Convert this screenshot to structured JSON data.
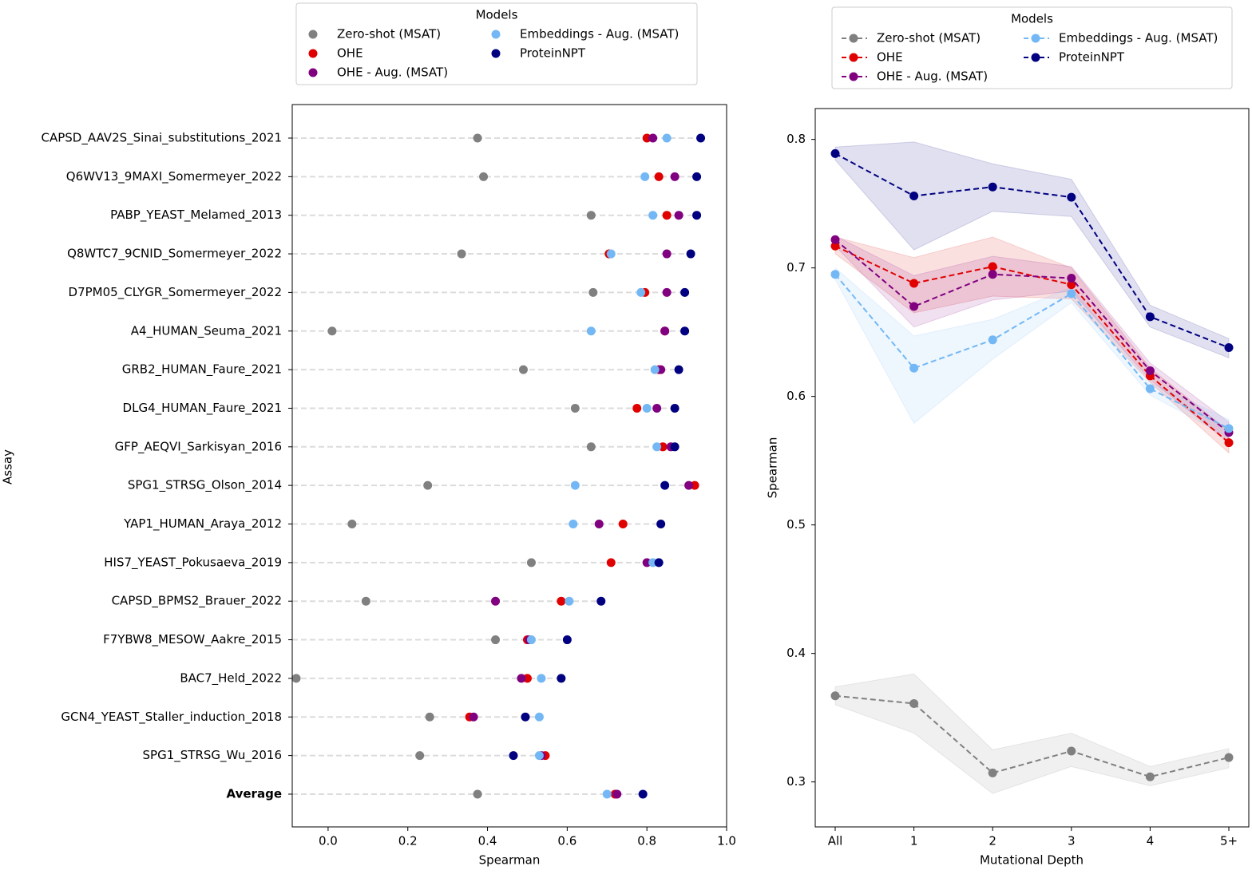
{
  "chart_data": [
    {
      "type": "dot",
      "xlabel": "Spearman",
      "ylabel": "Assay",
      "legend_title": "Models",
      "legend": "top",
      "categories": [
        "CAPSD_AAV2S_Sinai_substitutions_2021",
        "Q6WV13_9MAXI_Somermeyer_2022",
        "PABP_YEAST_Melamed_2013",
        "Q8WTC7_9CNID_Somermeyer_2022",
        "D7PM05_CLYGR_Somermeyer_2022",
        "A4_HUMAN_Seuma_2021",
        "GRB2_HUMAN_Faure_2021",
        "DLG4_HUMAN_Faure_2021",
        "GFP_AEQVI_Sarkisyan_2016",
        "SPG1_STRSG_Olson_2014",
        "YAP1_HUMAN_Araya_2012",
        "HIS7_YEAST_Pokusaeva_2019",
        "CAPSD_BPMS2_Brauer_2022",
        "F7YBW8_MESOW_Aakre_2015",
        "BAC7_Held_2022",
        "GCN4_YEAST_Staller_induction_2018",
        "SPG1_STRSG_Wu_2016",
        "Average"
      ],
      "series": [
        {
          "name": "Zero-shot (MSAT)",
          "color": "#808080",
          "values": [
            0.375,
            0.39,
            0.66,
            0.335,
            0.665,
            0.01,
            0.49,
            0.62,
            0.66,
            0.25,
            0.06,
            0.51,
            0.095,
            0.42,
            -0.08,
            0.255,
            0.23,
            0.375
          ]
        },
        {
          "name": "OHE",
          "color": "#e00000",
          "values": [
            0.8,
            0.83,
            0.85,
            0.705,
            0.795,
            0.845,
            0.83,
            0.775,
            0.84,
            0.92,
            0.74,
            0.71,
            0.585,
            0.5,
            0.5,
            0.355,
            0.545,
            0.72
          ]
        },
        {
          "name": "OHE - Aug. (MSAT)",
          "color": "#800080",
          "values": [
            0.815,
            0.87,
            0.88,
            0.85,
            0.85,
            0.845,
            0.835,
            0.825,
            0.86,
            0.905,
            0.68,
            0.8,
            0.42,
            0.505,
            0.485,
            0.365,
            0.535,
            0.725
          ]
        },
        {
          "name": "Embeddings - Aug. (MSAT)",
          "color": "#73b8f5",
          "values": [
            0.85,
            0.795,
            0.815,
            0.71,
            0.785,
            0.66,
            0.82,
            0.8,
            0.825,
            0.62,
            0.615,
            0.815,
            0.605,
            0.51,
            0.535,
            0.53,
            0.53,
            0.7
          ]
        },
        {
          "name": "ProteinNPT",
          "color": "#000080",
          "values": [
            0.935,
            0.925,
            0.925,
            0.91,
            0.895,
            0.895,
            0.88,
            0.87,
            0.87,
            0.845,
            0.835,
            0.83,
            0.685,
            0.6,
            0.585,
            0.495,
            0.465,
            0.79
          ]
        }
      ],
      "xlim": [
        -0.09,
        1.0
      ],
      "xticks": [
        {
          "value": 0,
          "label": "0.0"
        },
        0.2,
        0.4,
        0.6,
        0.8,
        {
          "value": 1,
          "label": "1.0"
        }
      ]
    },
    {
      "type": "line",
      "xlabel": "Mutational Depth",
      "ylabel": "Spearman",
      "legend_title": "Models",
      "legend": "top",
      "categories": [
        "All",
        "1",
        "2",
        "3",
        "4",
        "5+"
      ],
      "series": [
        {
          "name": "Zero-shot (MSAT)",
          "color": "#808080",
          "values": [
            0.367,
            0.361,
            0.307,
            0.324,
            0.304,
            0.319
          ],
          "lower": [
            0.36,
            0.338,
            0.291,
            0.312,
            0.297,
            0.311
          ],
          "upper": [
            0.374,
            0.384,
            0.325,
            0.338,
            0.312,
            0.326
          ]
        },
        {
          "name": "OHE",
          "color": "#e00000",
          "values": [
            0.717,
            0.688,
            0.701,
            0.687,
            0.616,
            0.564
          ],
          "lower": [
            0.711,
            0.665,
            0.678,
            0.676,
            0.611,
            0.556
          ],
          "upper": [
            0.724,
            0.708,
            0.724,
            0.7,
            0.622,
            0.573
          ]
        },
        {
          "name": "OHE - Aug. (MSAT)",
          "color": "#800080",
          "values": [
            0.722,
            0.67,
            0.695,
            0.692,
            0.62,
            0.572
          ],
          "lower": [
            0.717,
            0.654,
            0.675,
            0.682,
            0.613,
            0.564
          ],
          "upper": [
            0.725,
            0.694,
            0.709,
            0.701,
            0.626,
            0.58
          ]
        },
        {
          "name": "Embeddings - Aug. (MSAT)",
          "color": "#73b8f5",
          "values": [
            0.695,
            0.622,
            0.644,
            0.68,
            0.606,
            0.575
          ],
          "lower": [
            0.691,
            0.579,
            0.629,
            0.673,
            0.601,
            0.568
          ],
          "upper": [
            0.7,
            0.647,
            0.66,
            0.685,
            0.611,
            0.582
          ]
        },
        {
          "name": "ProteinNPT",
          "color": "#000080",
          "values": [
            0.789,
            0.756,
            0.763,
            0.755,
            0.662,
            0.638
          ],
          "lower": [
            0.784,
            0.714,
            0.744,
            0.74,
            0.654,
            0.63
          ],
          "upper": [
            0.794,
            0.798,
            0.781,
            0.769,
            0.671,
            0.645
          ]
        }
      ],
      "ylim": [
        0.265,
        0.824
      ],
      "yticks": [
        0.3,
        0.4,
        0.5,
        0.6,
        0.7,
        0.8
      ]
    }
  ]
}
